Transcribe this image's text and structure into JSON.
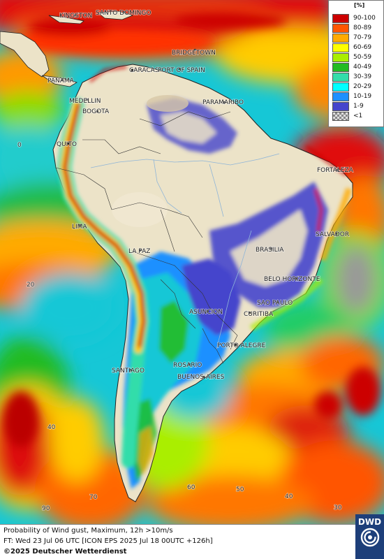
{
  "cities": [
    {
      "id": "kingston",
      "label": "KINGSTON"
    },
    {
      "id": "santo-domingo",
      "label": "SANTO DOMINGO"
    },
    {
      "id": "bridgetown",
      "label": "BRIDGETOWN"
    },
    {
      "id": "caracas",
      "label": "CARACAS"
    },
    {
      "id": "port-of-spain",
      "label": "PORT OF SPAIN"
    },
    {
      "id": "panama",
      "label": "PANAMA"
    },
    {
      "id": "medellin",
      "label": "MEDELLIN"
    },
    {
      "id": "bogota",
      "label": "BOGOTA"
    },
    {
      "id": "paramaribo",
      "label": "PARAMARIBO"
    },
    {
      "id": "quito",
      "label": "QUITO"
    },
    {
      "id": "fortaleza",
      "label": "FORTALEZA"
    },
    {
      "id": "lima",
      "label": "LIMA"
    },
    {
      "id": "salvador",
      "label": "SALVADOR"
    },
    {
      "id": "la-paz",
      "label": "LA PAZ"
    },
    {
      "id": "brasilia",
      "label": "BRASILIA"
    },
    {
      "id": "belo-horizonte",
      "label": "BELO HORIZONTE"
    },
    {
      "id": "sao-paulo",
      "label": "SAO PAULO"
    },
    {
      "id": "asuncion",
      "label": "ASUNCION"
    },
    {
      "id": "curitiba",
      "label": "CURITIBA"
    },
    {
      "id": "porto-alegre",
      "label": "PORTO ALEGRE"
    },
    {
      "id": "santiago",
      "label": "SANTIAGO"
    },
    {
      "id": "rosario",
      "label": "ROSARIO"
    },
    {
      "id": "buenos-aires",
      "label": "BUENOS AIRES"
    }
  ],
  "grid_labels": [
    "0",
    "20",
    "40",
    "90",
    "70",
    "60",
    "50",
    "40",
    "30"
  ],
  "legend": {
    "unit": "[%]",
    "classes": [
      {
        "label": "90-100",
        "color": "#cc0000"
      },
      {
        "label": "80-89",
        "color": "#ff5500"
      },
      {
        "label": "70-79",
        "color": "#ffaa00"
      },
      {
        "label": "60-69",
        "color": "#ffff00"
      },
      {
        "label": "50-59",
        "color": "#aaee00"
      },
      {
        "label": "40-49",
        "color": "#22bb22"
      },
      {
        "label": "30-39",
        "color": "#33ddaa"
      },
      {
        "label": "20-29",
        "color": "#00ffff"
      },
      {
        "label": "10-19",
        "color": "#1e90ff"
      },
      {
        "label": "1-9",
        "color": "#4545cc"
      },
      {
        "label": "<1",
        "color": "#bbbbbb"
      }
    ]
  },
  "footer": {
    "line1": "Probability of Wind gust, Maximum, 12h >10m/s",
    "line2": "FT: Wed 23 Jul 06 UTC [ICON EPS 2025 Jul 18 00UTC +126h]",
    "line3": "©2025 Deutscher Wetterdienst"
  },
  "logo": {
    "text": "DWD"
  }
}
